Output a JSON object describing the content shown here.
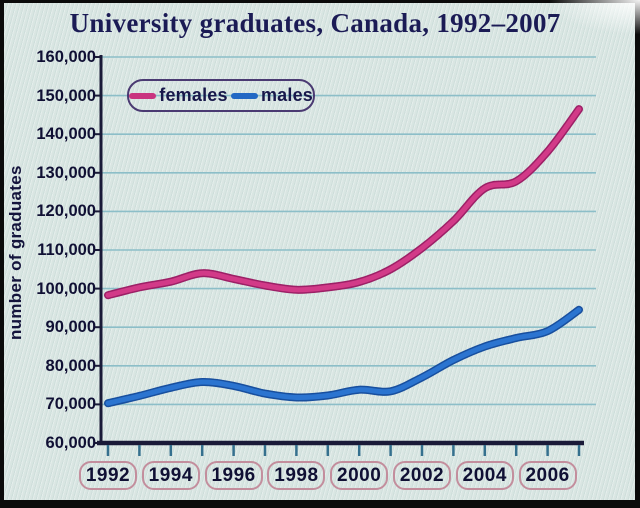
{
  "title": "University graduates, Canada, 1992–2007",
  "legend": {
    "items": [
      {
        "label": "females",
        "color": "#c9347f"
      },
      {
        "label": "males",
        "color": "#2268c4"
      }
    ]
  },
  "chart_data": {
    "type": "line",
    "title": "University graduates, Canada, 1992–2007",
    "xlabel": "",
    "ylabel": "number of graduates",
    "x": [
      1992,
      1993,
      1994,
      1995,
      1996,
      1997,
      1998,
      1999,
      2000,
      2001,
      2002,
      2003,
      2004,
      2005,
      2006,
      2007
    ],
    "series": [
      {
        "name": "females",
        "color": "#d23a88",
        "edge_color": "#9c2066",
        "values": [
          98300,
          100300,
          101800,
          104000,
          102500,
          100800,
          99700,
          100300,
          101700,
          105000,
          110500,
          117500,
          126000,
          127800,
          135500,
          146500
        ]
      },
      {
        "name": "males",
        "color": "#2b74d0",
        "edge_color": "#184f9e",
        "values": [
          70300,
          72200,
          74300,
          75800,
          74800,
          72800,
          71800,
          72300,
          73800,
          73400,
          77000,
          81500,
          85000,
          87200,
          89000,
          94500
        ]
      }
    ],
    "ylim": [
      60000,
      160000
    ],
    "y_tick_step": 10000,
    "y_tick_labels": [
      "160,000",
      "150,000",
      "140,000",
      "130,000",
      "120,000",
      "110,000",
      "100,000",
      "90,000",
      "80,000",
      "70,000",
      "60,000"
    ],
    "x_tick_labels": [
      "1992",
      "1994",
      "1996",
      "1998",
      "2000",
      "2002",
      "2004",
      "2006"
    ],
    "grid": "horizontal gridlines on, light teal",
    "legend_position": "top-left inside plot"
  },
  "colors": {
    "paper": "#d9e5e2",
    "frame": "#0b0b0b",
    "gridline": "#8cbec8",
    "axis": "#1a1a38",
    "x_tick": "#35708e",
    "text": "#101034",
    "year_box_border": "#c38e9d",
    "legend_border": "#4a3a72"
  }
}
